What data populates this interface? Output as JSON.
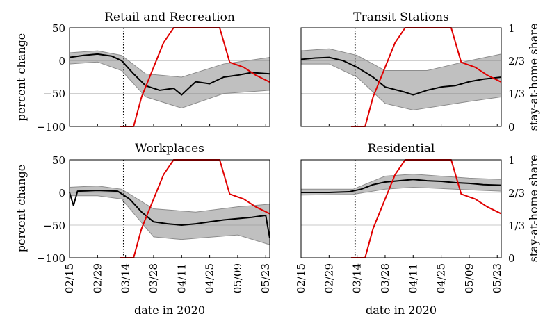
{
  "figure": {
    "x_axis_label": "date in 2020",
    "y_axis_label_left": "percent change",
    "y_axis_label_right": "stay-at-home share",
    "x_tick_labels": [
      "02/15",
      "02/29",
      "03/14",
      "03/28",
      "04/11",
      "04/25",
      "05/09",
      "05/23"
    ],
    "y_tick_labels_left": [
      "50",
      "0",
      "−50",
      "−100"
    ],
    "y_tick_labels_right": [
      "0",
      "1/3",
      "2/3",
      "1"
    ]
  },
  "colors": {
    "series_mean": "#000000",
    "series_states": "#8c8c8c",
    "stay_at_home": "#e00000",
    "gridline": "#c8c8c8"
  },
  "chart_data": [
    {
      "type": "line",
      "title": "Retail and Recreation",
      "xlabel": "",
      "ylabel": "percent change",
      "ylabel_right": "",
      "x_range": [
        "2020-02-15",
        "2020-05-25"
      ],
      "ylim": [
        -100,
        50
      ],
      "ylim_right": [
        0,
        1
      ],
      "vertical_marker_date": "2020-03-13",
      "grid": "horizontal",
      "series": [
        {
          "role": "mean",
          "points": [
            [
              "2020-02-15",
              5
            ],
            [
              "2020-02-22",
              8
            ],
            [
              "2020-02-29",
              10
            ],
            [
              "2020-03-07",
              7
            ],
            [
              "2020-03-12",
              0
            ],
            [
              "2020-03-18",
              -20
            ],
            [
              "2020-03-24",
              -38
            ],
            [
              "2020-03-31",
              -45
            ],
            [
              "2020-04-07",
              -42
            ],
            [
              "2020-04-11",
              -52
            ],
            [
              "2020-04-18",
              -32
            ],
            [
              "2020-04-25",
              -35
            ],
            [
              "2020-05-02",
              -25
            ],
            [
              "2020-05-09",
              -22
            ],
            [
              "2020-05-16",
              -18
            ],
            [
              "2020-05-25",
              -20
            ]
          ]
        },
        {
          "role": "band_upper",
          "points": [
            [
              "2020-02-15",
              12
            ],
            [
              "2020-02-29",
              15
            ],
            [
              "2020-03-12",
              8
            ],
            [
              "2020-03-24",
              -20
            ],
            [
              "2020-04-11",
              -25
            ],
            [
              "2020-05-02",
              -5
            ],
            [
              "2020-05-25",
              5
            ]
          ]
        },
        {
          "role": "band_lower",
          "points": [
            [
              "2020-02-15",
              -5
            ],
            [
              "2020-02-29",
              -2
            ],
            [
              "2020-03-12",
              -15
            ],
            [
              "2020-03-24",
              -55
            ],
            [
              "2020-04-11",
              -72
            ],
            [
              "2020-05-02",
              -50
            ],
            [
              "2020-05-25",
              -45
            ]
          ]
        },
        {
          "role": "stay_at_home",
          "axis": "right",
          "points": [
            [
              "2020-03-11",
              0
            ],
            [
              "2020-03-18",
              0
            ],
            [
              "2020-03-22",
              0.3
            ],
            [
              "2020-03-28",
              0.6
            ],
            [
              "2020-04-02",
              0.85
            ],
            [
              "2020-04-07",
              1
            ],
            [
              "2020-04-30",
              1
            ],
            [
              "2020-05-05",
              0.65
            ],
            [
              "2020-05-12",
              0.6
            ],
            [
              "2020-05-18",
              0.52
            ],
            [
              "2020-05-25",
              0.45
            ]
          ]
        }
      ]
    },
    {
      "type": "line",
      "title": "Transit Stations",
      "xlabel": "",
      "ylabel": "",
      "ylabel_right": "stay-at-home share",
      "x_range": [
        "2020-02-15",
        "2020-05-25"
      ],
      "ylim": [
        -100,
        50
      ],
      "ylim_right": [
        0,
        1
      ],
      "vertical_marker_date": "2020-03-13",
      "grid": "horizontal",
      "series": [
        {
          "role": "mean",
          "points": [
            [
              "2020-02-15",
              2
            ],
            [
              "2020-02-22",
              4
            ],
            [
              "2020-02-29",
              5
            ],
            [
              "2020-03-07",
              0
            ],
            [
              "2020-03-14",
              -10
            ],
            [
              "2020-03-22",
              -25
            ],
            [
              "2020-03-28",
              -40
            ],
            [
              "2020-04-07",
              -48
            ],
            [
              "2020-04-11",
              -52
            ],
            [
              "2020-04-18",
              -45
            ],
            [
              "2020-04-25",
              -40
            ],
            [
              "2020-05-02",
              -38
            ],
            [
              "2020-05-09",
              -32
            ],
            [
              "2020-05-16",
              -28
            ],
            [
              "2020-05-25",
              -25
            ]
          ]
        },
        {
          "role": "band_upper",
          "points": [
            [
              "2020-02-15",
              15
            ],
            [
              "2020-02-29",
              18
            ],
            [
              "2020-03-14",
              8
            ],
            [
              "2020-03-28",
              -15
            ],
            [
              "2020-04-18",
              -15
            ],
            [
              "2020-05-09",
              0
            ],
            [
              "2020-05-25",
              10
            ]
          ]
        },
        {
          "role": "band_lower",
          "points": [
            [
              "2020-02-15",
              -5
            ],
            [
              "2020-02-29",
              -5
            ],
            [
              "2020-03-14",
              -25
            ],
            [
              "2020-03-28",
              -65
            ],
            [
              "2020-04-11",
              -75
            ],
            [
              "2020-05-09",
              -62
            ],
            [
              "2020-05-25",
              -55
            ]
          ]
        },
        {
          "role": "stay_at_home",
          "axis": "right",
          "points": [
            [
              "2020-03-11",
              0
            ],
            [
              "2020-03-18",
              0
            ],
            [
              "2020-03-22",
              0.3
            ],
            [
              "2020-03-28",
              0.6
            ],
            [
              "2020-04-02",
              0.85
            ],
            [
              "2020-04-07",
              1
            ],
            [
              "2020-04-30",
              1
            ],
            [
              "2020-05-05",
              0.65
            ],
            [
              "2020-05-12",
              0.6
            ],
            [
              "2020-05-18",
              0.52
            ],
            [
              "2020-05-25",
              0.45
            ]
          ]
        }
      ]
    },
    {
      "type": "line",
      "title": "Workplaces",
      "xlabel": "date in 2020",
      "ylabel": "percent change",
      "ylabel_right": "",
      "x_range": [
        "2020-02-15",
        "2020-05-25"
      ],
      "ylim": [
        -100,
        50
      ],
      "ylim_right": [
        0,
        1
      ],
      "vertical_marker_date": "2020-03-13",
      "grid": "horizontal",
      "series": [
        {
          "role": "mean",
          "points": [
            [
              "2020-02-15",
              0
            ],
            [
              "2020-02-17",
              -20
            ],
            [
              "2020-02-19",
              2
            ],
            [
              "2020-02-29",
              3
            ],
            [
              "2020-03-10",
              2
            ],
            [
              "2020-03-16",
              -10
            ],
            [
              "2020-03-22",
              -30
            ],
            [
              "2020-03-28",
              -45
            ],
            [
              "2020-04-04",
              -48
            ],
            [
              "2020-04-11",
              -50
            ],
            [
              "2020-04-18",
              -48
            ],
            [
              "2020-04-25",
              -45
            ],
            [
              "2020-05-02",
              -42
            ],
            [
              "2020-05-09",
              -40
            ],
            [
              "2020-05-16",
              -38
            ],
            [
              "2020-05-23",
              -35
            ],
            [
              "2020-05-25",
              -70
            ]
          ]
        },
        {
          "role": "band_upper",
          "points": [
            [
              "2020-02-15",
              8
            ],
            [
              "2020-02-29",
              10
            ],
            [
              "2020-03-12",
              5
            ],
            [
              "2020-03-28",
              -25
            ],
            [
              "2020-04-18",
              -30
            ],
            [
              "2020-05-09",
              -22
            ],
            [
              "2020-05-25",
              -18
            ]
          ]
        },
        {
          "role": "band_lower",
          "points": [
            [
              "2020-02-15",
              -5
            ],
            [
              "2020-02-29",
              -5
            ],
            [
              "2020-03-12",
              -10
            ],
            [
              "2020-03-28",
              -68
            ],
            [
              "2020-04-11",
              -72
            ],
            [
              "2020-05-09",
              -65
            ],
            [
              "2020-05-25",
              -80
            ]
          ]
        },
        {
          "role": "stay_at_home",
          "axis": "right",
          "points": [
            [
              "2020-03-11",
              0
            ],
            [
              "2020-03-18",
              0
            ],
            [
              "2020-03-22",
              0.3
            ],
            [
              "2020-03-28",
              0.6
            ],
            [
              "2020-04-02",
              0.85
            ],
            [
              "2020-04-07",
              1
            ],
            [
              "2020-04-30",
              1
            ],
            [
              "2020-05-05",
              0.65
            ],
            [
              "2020-05-12",
              0.6
            ],
            [
              "2020-05-18",
              0.52
            ],
            [
              "2020-05-25",
              0.45
            ]
          ]
        }
      ]
    },
    {
      "type": "line",
      "title": "Residential",
      "xlabel": "date in 2020",
      "ylabel": "",
      "ylabel_right": "stay-at-home share",
      "x_range": [
        "2020-02-15",
        "2020-05-25"
      ],
      "ylim": [
        -100,
        50
      ],
      "ylim_right": [
        0,
        1
      ],
      "vertical_marker_date": "2020-03-13",
      "grid": "horizontal",
      "series": [
        {
          "role": "mean",
          "points": [
            [
              "2020-02-15",
              0
            ],
            [
              "2020-02-29",
              0
            ],
            [
              "2020-03-10",
              1
            ],
            [
              "2020-03-16",
              5
            ],
            [
              "2020-03-22",
              12
            ],
            [
              "2020-03-28",
              16
            ],
            [
              "2020-04-04",
              18
            ],
            [
              "2020-04-11",
              20
            ],
            [
              "2020-04-18",
              18
            ],
            [
              "2020-04-25",
              17
            ],
            [
              "2020-05-02",
              15
            ],
            [
              "2020-05-09",
              14
            ],
            [
              "2020-05-16",
              12
            ],
            [
              "2020-05-25",
              11
            ]
          ]
        },
        {
          "role": "band_upper",
          "points": [
            [
              "2020-02-15",
              5
            ],
            [
              "2020-03-12",
              5
            ],
            [
              "2020-03-28",
              25
            ],
            [
              "2020-04-11",
              28
            ],
            [
              "2020-05-09",
              22
            ],
            [
              "2020-05-25",
              20
            ]
          ]
        },
        {
          "role": "band_lower",
          "points": [
            [
              "2020-02-15",
              -4
            ],
            [
              "2020-03-12",
              -3
            ],
            [
              "2020-03-28",
              5
            ],
            [
              "2020-04-11",
              8
            ],
            [
              "2020-05-09",
              4
            ],
            [
              "2020-05-25",
              2
            ]
          ]
        },
        {
          "role": "stay_at_home",
          "axis": "right",
          "points": [
            [
              "2020-03-11",
              0
            ],
            [
              "2020-03-18",
              0
            ],
            [
              "2020-03-22",
              0.3
            ],
            [
              "2020-03-28",
              0.6
            ],
            [
              "2020-04-02",
              0.85
            ],
            [
              "2020-04-07",
              1
            ],
            [
              "2020-04-30",
              1
            ],
            [
              "2020-05-05",
              0.65
            ],
            [
              "2020-05-12",
              0.6
            ],
            [
              "2020-05-18",
              0.52
            ],
            [
              "2020-05-25",
              0.45
            ]
          ]
        }
      ]
    }
  ]
}
